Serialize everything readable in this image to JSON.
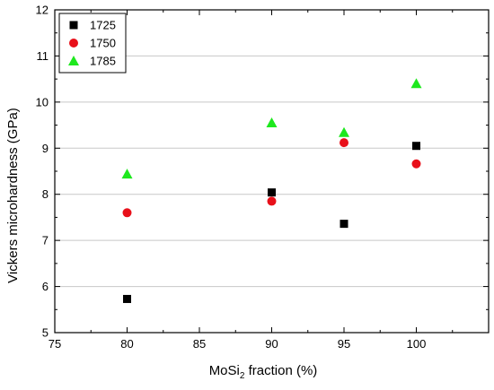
{
  "chart_data": {
    "type": "scatter",
    "title": "",
    "xlabel": {
      "prefix": "MoSi",
      "subscript": "2",
      "suffix": " fraction (%)"
    },
    "ylabel": "Vickers microhardness (GPa)",
    "xlim": [
      75,
      105
    ],
    "ylim": [
      5,
      12
    ],
    "xticks": [
      75,
      80,
      85,
      90,
      95,
      100
    ],
    "yticks": [
      5,
      6,
      7,
      8,
      9,
      10,
      11,
      12
    ],
    "grid": "horizontal",
    "legend_position": "top-left",
    "series": [
      {
        "name": "1725",
        "marker": "square",
        "color": "#000000",
        "x": [
          80,
          90,
          95,
          100
        ],
        "y": [
          5.73,
          8.04,
          7.36,
          9.05
        ]
      },
      {
        "name": "1750",
        "marker": "circle",
        "color": "#e8101a",
        "x": [
          80,
          90,
          95,
          100
        ],
        "y": [
          7.6,
          7.85,
          9.12,
          8.66
        ]
      },
      {
        "name": "1785",
        "marker": "triangle",
        "color": "#1ee81e",
        "x": [
          80,
          90,
          95,
          100
        ],
        "y": [
          8.44,
          9.55,
          9.34,
          10.4
        ]
      }
    ]
  }
}
